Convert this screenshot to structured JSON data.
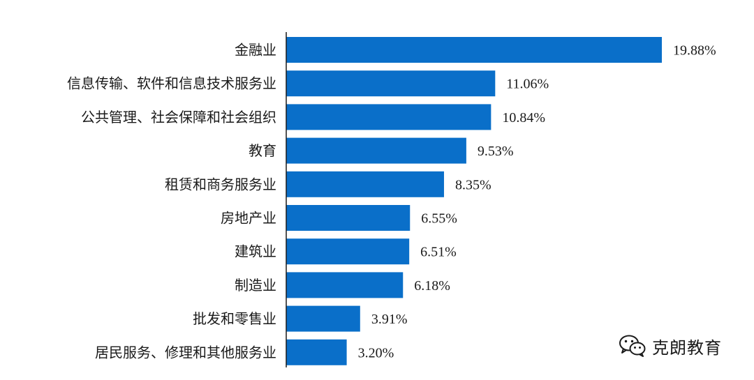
{
  "chart_data": {
    "type": "bar",
    "orientation": "horizontal",
    "title": "",
    "xlabel": "",
    "ylabel": "",
    "grid": false,
    "bar_color": "#0a6fc9",
    "xlim": [
      0,
      20
    ],
    "categories": [
      "金融业",
      "信息传输、软件和信息技术服务业",
      "公共管理、社会保障和社会组织",
      "教育",
      "租赁和商务服务业",
      "房地产业",
      "建筑业",
      "制造业",
      "批发和零售业",
      "居民服务、修理和其他服务业"
    ],
    "values": [
      19.88,
      11.06,
      10.84,
      9.53,
      8.35,
      6.55,
      6.51,
      6.18,
      3.91,
      3.2
    ],
    "data_labels": [
      "19.88%",
      "11.06%",
      "10.84%",
      "9.53%",
      "8.35%",
      "6.55%",
      "6.51%",
      "6.18%",
      "3.91%",
      "3.20%"
    ]
  },
  "watermark": {
    "text": "克朗教育",
    "icon": "wechat-icon"
  }
}
